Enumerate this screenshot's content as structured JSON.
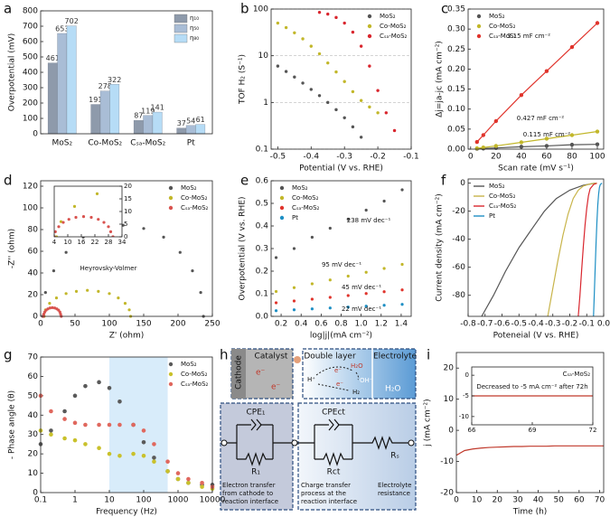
{
  "chart_data": [
    {
      "type": "bar",
      "panel": "a",
      "ylabel": "Overpotential (mV)",
      "categories": [
        "MoS₂",
        "Co-MoS₂",
        "Cₛₐ-MoS₂",
        "Pt"
      ],
      "series": [
        {
          "name": "η₁₀",
          "color": "#8e9aab",
          "values": [
            461,
            191,
            87,
            37
          ]
        },
        {
          "name": "η₅₀",
          "color": "#a9bdd6",
          "values": [
            653,
            278,
            119,
            54
          ]
        },
        {
          "name": "η₈₀",
          "color": "#b6dcf6",
          "values": [
            702,
            322,
            141,
            61
          ]
        }
      ],
      "ylim": [
        0,
        800
      ],
      "yticks": [
        0,
        100,
        200,
        300,
        400,
        500,
        600,
        700,
        800
      ],
      "legend": "upper right"
    },
    {
      "type": "scatter",
      "panel": "b",
      "xlabel": "Potential (V vs. RHE)",
      "ylabel": "TOF H₂ (S⁻¹)",
      "xlim": [
        -0.52,
        -0.1
      ],
      "xticks": [
        -0.5,
        -0.4,
        -0.3,
        -0.2,
        -0.1
      ],
      "ylim": [
        0.1,
        100
      ],
      "yticks": [
        0.1,
        1,
        10,
        100
      ],
      "ylog": true,
      "grid": true,
      "legend": "upper right",
      "series": [
        {
          "name": "MoS₂",
          "color": "#555555",
          "x": [
            -0.5,
            -0.475,
            -0.45,
            -0.425,
            -0.4,
            -0.375,
            -0.35,
            -0.325,
            -0.3,
            -0.275,
            -0.25
          ],
          "values": [
            6,
            4.6,
            3.5,
            2.6,
            1.9,
            1.4,
            1,
            0.7,
            0.47,
            0.3,
            0.18
          ]
        },
        {
          "name": "Co-MoS₂",
          "color": "#c2b72a",
          "x": [
            -0.5,
            -0.475,
            -0.45,
            -0.425,
            -0.4,
            -0.375,
            -0.35,
            -0.325,
            -0.3,
            -0.275,
            -0.25,
            -0.225,
            -0.2
          ],
          "values": [
            50,
            40,
            31,
            23,
            16,
            11,
            7,
            4.5,
            2.8,
            1.7,
            1.1,
            0.8,
            0.6
          ]
        },
        {
          "name": "Cₛₐ-MoS₂",
          "color": "#d9262e",
          "x": [
            -0.375,
            -0.35,
            -0.325,
            -0.3,
            -0.275,
            -0.25,
            -0.225,
            -0.2,
            -0.175,
            -0.15
          ],
          "values": [
            85,
            78,
            66,
            50,
            32,
            16,
            6,
            1.8,
            0.6,
            0.25
          ]
        }
      ]
    },
    {
      "type": "scatter",
      "lines": true,
      "panel": "c",
      "xlabel": "Scan rate (mV s⁻¹)",
      "ylabel": "Δj=ja-jc (mA cm⁻²)",
      "xlim": [
        -2,
        105
      ],
      "xticks": [
        0,
        20,
        40,
        60,
        80,
        100
      ],
      "ylim": [
        0,
        0.35
      ],
      "yticks": [
        {
          "value": 0,
          "label": "0.00"
        },
        0.05,
        {
          "value": 0.1,
          "label": "0.10"
        },
        0.15,
        {
          "value": 0.2,
          "label": "0.20"
        },
        0.25,
        {
          "value": 0.3,
          "label": "0.30"
        },
        0.35
      ],
      "legend": "upper left",
      "x": [
        5,
        10,
        20,
        40,
        60,
        80,
        100
      ],
      "annotations": [
        "3.15 mF cm⁻²",
        "0.427 mF cm⁻²",
        "0.115 mF cm⁻²"
      ],
      "series": [
        {
          "name": "MoS₂",
          "color": "#555555",
          "values": [
            0.001,
            0.0015,
            0.003,
            0.006,
            0.008,
            0.011,
            0.012
          ]
        },
        {
          "name": "Co-MoS₂",
          "color": "#c2b72a",
          "values": [
            0.002,
            0.004,
            0.008,
            0.017,
            0.026,
            0.035,
            0.044
          ]
        },
        {
          "name": "Cₛₐ-MoS₂",
          "color": "#e0342c",
          "values": [
            0.018,
            0.035,
            0.07,
            0.135,
            0.195,
            0.255,
            0.315
          ]
        }
      ]
    },
    {
      "type": "scatter",
      "panel": "d",
      "xlabel": "Z' (ohm)",
      "ylabel": "-Z'' (ohm)",
      "xlim": [
        0,
        250
      ],
      "xticks": [
        0,
        50,
        100,
        150,
        200,
        250
      ],
      "ylim": [
        0,
        125
      ],
      "yticks": [
        0,
        20,
        40,
        60,
        80,
        100,
        120
      ],
      "legend": "upper right",
      "annotations": [
        "Heyrovsky-Volmer"
      ],
      "inset": {
        "xlim": [
          4,
          34
        ],
        "xticks": [
          4,
          10,
          16,
          22,
          28,
          34
        ],
        "ylim": [
          0,
          20
        ],
        "yticks": [
          0,
          5,
          10,
          15,
          20
        ]
      },
      "series": [
        {
          "name": "MoS₂",
          "color": "#555555",
          "x": [
            3,
            7,
            19,
            37,
            62,
            90,
            120,
            150,
            179,
            203,
            221,
            233,
            237
          ],
          "values": [
            0,
            22,
            42,
            59,
            73,
            81,
            84,
            81,
            73,
            59,
            42,
            22,
            0
          ]
        },
        {
          "name": "Co-MoS₂",
          "color": "#c2b72a",
          "x": [
            5,
            7,
            13,
            23,
            37,
            52,
            68,
            84,
            100,
            113,
            123,
            129,
            131
          ],
          "values": [
            0,
            6,
            12,
            17,
            21,
            23,
            24,
            23,
            21,
            17,
            12,
            6,
            0
          ]
        },
        {
          "name": "Cₛₐ-MoS₂",
          "color": "#d9534f",
          "x": [
            4,
            4.5,
            6,
            8,
            10.5,
            13.6,
            17,
            20.4,
            23.5,
            26,
            28,
            29,
            30
          ],
          "values": [
            0,
            2,
            4,
            5.7,
            6.9,
            7.7,
            8,
            7.7,
            6.9,
            5.7,
            4,
            2,
            0
          ]
        }
      ]
    },
    {
      "type": "scatter",
      "panel": "e",
      "xlabel": "log|j|(mA cm⁻²)",
      "ylabel": "Overpotential (V vs. RHE)",
      "xlim": [
        0.1,
        1.5
      ],
      "xticks": [
        0.2,
        0.4,
        0.6,
        0.8,
        {
          "value": 1,
          "label": "1.0"
        },
        1.2,
        1.4
      ],
      "ylim": [
        0,
        0.6
      ],
      "yticks": [
        {
          "value": 0,
          "label": "0.0"
        },
        0.1,
        0.2,
        0.3,
        0.4,
        0.5,
        0.6
      ],
      "legend": "upper left",
      "x": [
        0.15,
        0.33,
        0.51,
        0.69,
        0.87,
        1.05,
        1.23,
        1.41
      ],
      "annotations": [
        "238 mV dec⁻¹",
        "95 mV dec⁻¹",
        "45 mV dec⁻¹",
        "22 mV dec⁻¹"
      ],
      "series": [
        {
          "name": "MoS₂",
          "color": "#555555",
          "values": [
            0.26,
            0.3,
            0.35,
            0.39,
            0.43,
            0.47,
            0.51,
            0.56
          ]
        },
        {
          "name": "Co-MoS₂",
          "color": "#c2b72a",
          "values": [
            0.11,
            0.127,
            0.144,
            0.161,
            0.178,
            0.195,
            0.212,
            0.23
          ]
        },
        {
          "name": "Cₛₐ-MoS₂",
          "color": "#e0342c",
          "values": [
            0.06,
            0.068,
            0.076,
            0.084,
            0.092,
            0.101,
            0.109,
            0.117
          ]
        },
        {
          "name": "Pt",
          "color": "#1e8fc4",
          "values": [
            0.025,
            0.029,
            0.033,
            0.037,
            0.041,
            0.045,
            0.049,
            0.053
          ]
        }
      ]
    },
    {
      "type": "line",
      "panel": "f",
      "xlabel": "Poteneial (V vs. RHE)",
      "ylabel": "Current density (mA cm⁻²)",
      "xlim": [
        -0.8,
        0
      ],
      "xticks": [
        -0.8,
        -0.7,
        -0.6,
        -0.5,
        -0.4,
        -0.3,
        -0.2,
        -0.1,
        {
          "value": 0,
          "label": "0.0"
        }
      ],
      "ylim": [
        -95,
        3
      ],
      "yticks": [
        0,
        -20,
        -40,
        -60,
        -80
      ],
      "legend": "upper left",
      "series": [
        {
          "name": "MoS₂",
          "color": "#555555",
          "x": [
            -0.72,
            -0.65,
            -0.58,
            -0.5,
            -0.42,
            -0.35,
            -0.28,
            -0.2,
            -0.12,
            -0.05
          ],
          "values": [
            -95,
            -80,
            -63,
            -46,
            -32,
            -20,
            -11,
            -5,
            -1.5,
            0
          ]
        },
        {
          "name": "Co-MoS₂",
          "color": "#c8b44a",
          "x": [
            -0.33,
            -0.3,
            -0.27,
            -0.24,
            -0.21,
            -0.18,
            -0.15,
            -0.12,
            -0.08,
            -0.04
          ],
          "values": [
            -95,
            -75,
            -55,
            -37,
            -22,
            -11,
            -5,
            -2,
            -0.5,
            0
          ]
        },
        {
          "name": "Cₛₐ-MoS₂",
          "color": "#d9262e",
          "x": [
            -0.15,
            -0.14,
            -0.13,
            -0.12,
            -0.11,
            -0.1,
            -0.09,
            -0.08,
            -0.06,
            -0.04
          ],
          "values": [
            -95,
            -80,
            -62,
            -45,
            -30,
            -18,
            -9,
            -4,
            -1,
            0
          ]
        },
        {
          "name": "Pt",
          "color": "#1e8fc4",
          "x": [
            -0.06,
            -0.055,
            -0.05,
            -0.045,
            -0.04,
            -0.035,
            -0.03,
            -0.025,
            -0.02,
            -0.01
          ],
          "values": [
            -95,
            -78,
            -60,
            -43,
            -28,
            -16,
            -8,
            -3,
            -1,
            0
          ]
        }
      ]
    },
    {
      "type": "scatter",
      "panel": "g",
      "xlabel": "Frequency (Hz)",
      "ylabel": "- Phase angle (θ)",
      "xlim": [
        0.1,
        10000
      ],
      "xlog": true,
      "xticks": [
        0.1,
        1,
        10,
        100,
        1000,
        10000
      ],
      "ylim": [
        0,
        70
      ],
      "yticks": [
        0,
        10,
        20,
        30,
        40,
        50,
        60,
        70
      ],
      "legend": "upper right",
      "highlight_x": [
        10,
        500
      ],
      "highlight_color": "#d8ecfa",
      "x": [
        0.1,
        0.2,
        0.5,
        1,
        2,
        5,
        10,
        20,
        50,
        100,
        200,
        500,
        1000,
        2000,
        5000,
        10000
      ],
      "series": [
        {
          "name": "MoS₂",
          "color": "#5a5a5a",
          "values": [
            25,
            32,
            42,
            50,
            55,
            57,
            54,
            47,
            35,
            26,
            18,
            11,
            7,
            5,
            4,
            4
          ]
        },
        {
          "name": "Co-MoS₂",
          "color": "#c9c12b",
          "values": [
            32,
            30,
            28,
            27,
            25,
            23,
            20,
            19,
            20,
            19,
            16,
            11,
            7,
            5,
            3,
            2
          ]
        },
        {
          "name": "Cₛₐ-MoS₂",
          "color": "#e0685e",
          "values": [
            50,
            42,
            38,
            36,
            35,
            35,
            35,
            35,
            35,
            32,
            25,
            16,
            10,
            7,
            5,
            3
          ]
        }
      ]
    },
    {
      "type": "diagram",
      "panel": "h",
      "cathode": "Cathode",
      "catalyst": "Catalyst",
      "electron": "e⁻",
      "double_layer": "Double layer",
      "electrolyte": "Electrolyte",
      "h2o": "H₂O",
      "oh": "OH⁻",
      "hplus": "H⁺",
      "h2": "H₂",
      "cpe1": "CPE₁",
      "cpect": "CPEct",
      "r1": "R₁",
      "rct": "Rct",
      "rs": "Rₛ",
      "desc1": [
        "Electron transfer",
        "from cathode to",
        "reaction interface"
      ],
      "desc2": [
        "Charge transfer",
        "process at the",
        "reaction interface"
      ],
      "desc3": [
        "Electrolyte",
        "resistance"
      ]
    },
    {
      "type": "line",
      "panel": "i",
      "xlabel": "Time (h)",
      "ylabel": "j (mA cm⁻²)",
      "xlim": [
        0,
        72
      ],
      "xticks": [
        0,
        10,
        20,
        30,
        40,
        50,
        60,
        70
      ],
      "ylim": [
        -20,
        25
      ],
      "yticks": [
        20,
        10,
        0,
        -10,
        -20
      ],
      "x": [
        0,
        4,
        8,
        12,
        16,
        20,
        24,
        28,
        32,
        36,
        40,
        44,
        48,
        52,
        56,
        60,
        64,
        68,
        72
      ],
      "series": [
        {
          "name": "Cₛₐ-MoS₂",
          "color": "#c0392b",
          "values": [
            -8,
            -6.5,
            -6,
            -5.7,
            -5.5,
            -5.4,
            -5.3,
            -5.2,
            -5.2,
            -5.1,
            -5.1,
            -5.1,
            -5,
            -5,
            -5,
            -5,
            -5,
            -5,
            -5
          ]
        }
      ],
      "inset": {
        "xlim": [
          66,
          72
        ],
        "xticks": [
          66,
          69,
          72
        ],
        "ylim": [
          -12,
          2
        ],
        "yticks": [
          0,
          -5,
          -10
        ],
        "reference": -5,
        "label": "Cₛₐ-MoS₂",
        "note": "Decreased to -5 mA cm⁻² after 72h"
      }
    }
  ]
}
